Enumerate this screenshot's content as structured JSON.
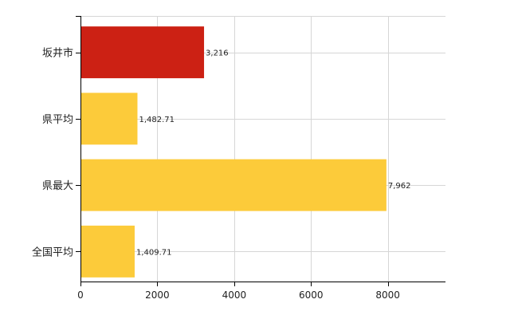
{
  "chart_data": {
    "type": "bar",
    "orientation": "horizontal",
    "categories": [
      "坂井市",
      "県平均",
      "県最大",
      "全国平均"
    ],
    "values": [
      3216,
      1482.71,
      7962,
      1409.71
    ],
    "value_labels": [
      "3,216",
      "1,482.71",
      "7,962",
      "1,409.71"
    ],
    "colors": [
      "#cc2114",
      "#fccb3a",
      "#fccb3a",
      "#fccb3a"
    ],
    "x_ticks": [
      0,
      2000,
      4000,
      6000,
      8000
    ],
    "xlim": [
      0,
      9500
    ],
    "grid": true,
    "title": "",
    "xlabel": "",
    "ylabel": ""
  }
}
